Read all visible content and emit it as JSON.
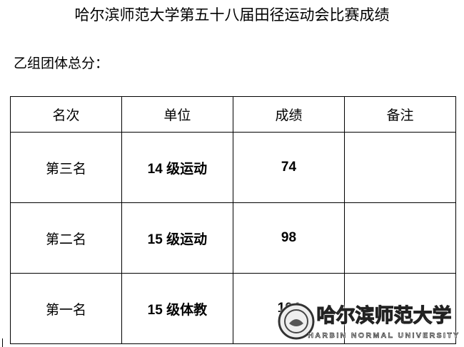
{
  "title": "哈尔滨师范大学第五十八届田径运动会比赛成绩",
  "subtitle": "乙组团体总分：",
  "table": {
    "headers": [
      "名次",
      "单位",
      "成绩",
      "备注"
    ],
    "rows": [
      {
        "rank": "第三名",
        "unit": "14 级运动",
        "score": "74",
        "note": ""
      },
      {
        "rank": "第二名",
        "unit": "15 级运动",
        "score": "98",
        "note": ""
      },
      {
        "rank": "第一名",
        "unit": "15 级体教",
        "score": "104",
        "note": ""
      }
    ]
  },
  "watermark": {
    "cn": "哈尔滨师范大学",
    "en": "HARBIN NORMAL UNIVERSITY"
  }
}
